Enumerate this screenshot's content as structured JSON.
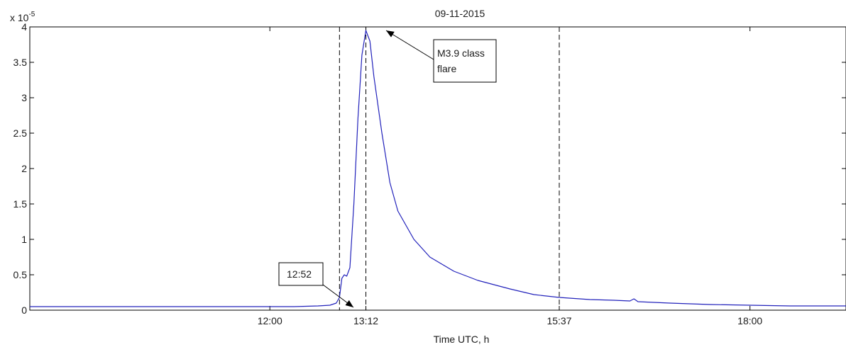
{
  "chart_data": {
    "type": "line",
    "title": "09-11-2015",
    "xlabel": "Time UTC, h",
    "ylabel": "",
    "y_scale_label": "x 10",
    "y_scale_exponent": "-5",
    "xlim": [
      9.0,
      19.2
    ],
    "ylim": [
      0,
      4
    ],
    "x_ticks": [
      {
        "value": 12.0,
        "label": "12:00"
      },
      {
        "value": 13.2,
        "label": "13:12"
      },
      {
        "value": 15.6167,
        "label": "15:37"
      },
      {
        "value": 18.0,
        "label": "18:00"
      }
    ],
    "y_ticks": [
      {
        "value": 0,
        "label": "0"
      },
      {
        "value": 0.5,
        "label": "0.5"
      },
      {
        "value": 1,
        "label": "1"
      },
      {
        "value": 1.5,
        "label": "1.5"
      },
      {
        "value": 2,
        "label": "2"
      },
      {
        "value": 2.5,
        "label": "2.5"
      },
      {
        "value": 3,
        "label": "3"
      },
      {
        "value": 3.5,
        "label": "3.5"
      },
      {
        "value": 4,
        "label": "4"
      }
    ],
    "grid": false,
    "series": [
      {
        "color": "#2222bb",
        "x": [
          9.0,
          9.5,
          10.0,
          10.5,
          11.0,
          11.5,
          12.0,
          12.3,
          12.6,
          12.75,
          12.83,
          12.87,
          12.9,
          12.93,
          12.96,
          13.0,
          13.05,
          13.1,
          13.15,
          13.2,
          13.25,
          13.3,
          13.4,
          13.5,
          13.6,
          13.8,
          14.0,
          14.3,
          14.6,
          15.0,
          15.3,
          15.6167,
          16.0,
          16.3,
          16.5,
          16.55,
          16.6,
          17.0,
          17.5,
          18.0,
          18.5,
          19.2
        ],
        "values": [
          0.05,
          0.05,
          0.05,
          0.05,
          0.05,
          0.05,
          0.05,
          0.05,
          0.06,
          0.07,
          0.1,
          0.18,
          0.45,
          0.5,
          0.48,
          0.6,
          1.5,
          2.7,
          3.6,
          3.95,
          3.8,
          3.3,
          2.5,
          1.8,
          1.4,
          1.0,
          0.75,
          0.55,
          0.42,
          0.3,
          0.22,
          0.18,
          0.15,
          0.14,
          0.13,
          0.16,
          0.12,
          0.1,
          0.08,
          0.07,
          0.06,
          0.06
        ]
      }
    ],
    "vlines": [
      12.87,
      13.2,
      15.6167
    ],
    "annotations": [
      {
        "text": "12:52",
        "x": 12.87,
        "y": 0.05
      },
      {
        "lines": [
          "M3.9 class",
          "flare"
        ],
        "x": 13.2,
        "y": 3.95
      }
    ]
  }
}
